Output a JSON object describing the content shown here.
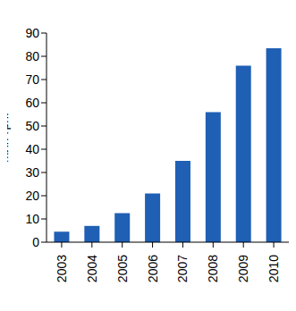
{
  "chart_data": {
    "type": "bar",
    "y_label": "Млн грн.",
    "categories": [
      "2003",
      "2004",
      "2005",
      "2006",
      "2007",
      "2008",
      "2009",
      "2010"
    ],
    "values": [
      4.5,
      7,
      12.5,
      21,
      35,
      56,
      76,
      83.5
    ],
    "color": "#1f5fb4",
    "ylim": [
      0,
      90
    ],
    "yticks": [
      0,
      10,
      20,
      30,
      40,
      50,
      60,
      70,
      80,
      90
    ],
    "grid": false
  }
}
